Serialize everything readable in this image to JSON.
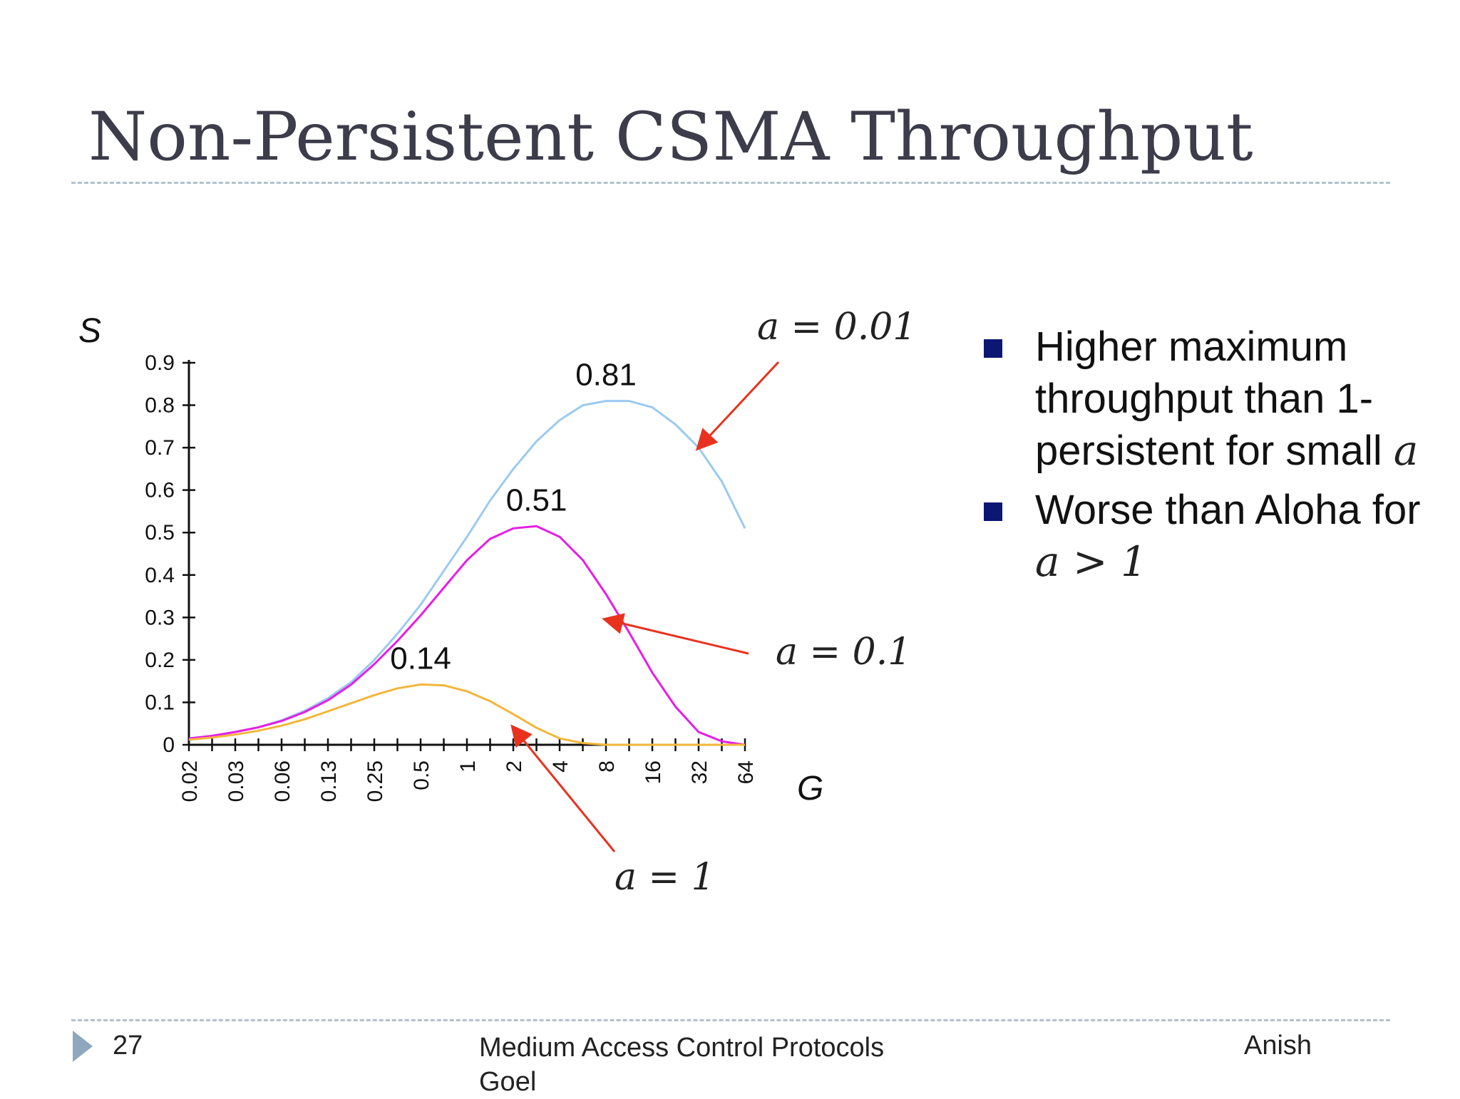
{
  "slide": {
    "title": "Non-Persistent CSMA Throughput",
    "page_number": "27",
    "footer_center_line1": "Medium Access Control Protocols",
    "footer_center_line2": "Goel",
    "footer_right": "Anish"
  },
  "bullets": [
    {
      "text": "Higher maximum throughput than 1-persistent for small",
      "var": "a"
    },
    {
      "text": "Worse than Aloha for",
      "var": "a > 1"
    }
  ],
  "chart_data": {
    "type": "line",
    "ylabel": "S",
    "xlabel": "G",
    "x_scale": "log",
    "x_ticks": [
      "0.02",
      "0.03",
      "0.06",
      "0.13",
      "0.25",
      "0.5",
      "1",
      "2",
      "4",
      "8",
      "16",
      "32",
      "64"
    ],
    "y_ticks": [
      "0",
      "0.1",
      "0.2",
      "0.3",
      "0.4",
      "0.5",
      "0.6",
      "0.7",
      "0.8",
      "0.9"
    ],
    "xlim": [
      0.0156,
      64
    ],
    "ylim": [
      0,
      0.9
    ],
    "series": [
      {
        "name": "a = 0.01",
        "color": "#9ccaf0",
        "x": [
          0.0156,
          0.022,
          0.031,
          0.044,
          0.0625,
          0.088,
          0.125,
          0.177,
          0.25,
          0.354,
          0.5,
          0.707,
          1,
          1.41,
          2,
          2.83,
          4,
          5.66,
          8,
          11.3,
          16,
          22.6,
          32,
          45.3,
          64
        ],
        "y": [
          0.015,
          0.021,
          0.03,
          0.041,
          0.058,
          0.08,
          0.11,
          0.148,
          0.2,
          0.262,
          0.33,
          0.41,
          0.49,
          0.575,
          0.65,
          0.715,
          0.765,
          0.8,
          0.81,
          0.81,
          0.795,
          0.755,
          0.7,
          0.62,
          0.51
        ]
      },
      {
        "name": "a = 0.1",
        "color": "#e61ee6",
        "x": [
          0.0156,
          0.022,
          0.031,
          0.044,
          0.0625,
          0.088,
          0.125,
          0.177,
          0.25,
          0.354,
          0.5,
          0.707,
          1,
          1.41,
          2,
          2.83,
          4,
          5.66,
          8,
          11.3,
          16,
          22.6,
          32,
          45.3,
          64
        ],
        "y": [
          0.015,
          0.021,
          0.03,
          0.041,
          0.056,
          0.077,
          0.105,
          0.142,
          0.19,
          0.245,
          0.305,
          0.37,
          0.435,
          0.485,
          0.51,
          0.515,
          0.49,
          0.435,
          0.355,
          0.265,
          0.17,
          0.09,
          0.03,
          0.008,
          0.0
        ]
      },
      {
        "name": "a = 1",
        "color": "#f3b63a",
        "x": [
          0.0156,
          0.022,
          0.031,
          0.044,
          0.0625,
          0.088,
          0.125,
          0.177,
          0.25,
          0.354,
          0.5,
          0.707,
          1,
          1.41,
          2,
          2.83,
          4,
          5.66,
          8,
          11.3,
          16,
          22.6,
          32,
          45.3,
          64
        ],
        "y": [
          0.012,
          0.017,
          0.024,
          0.033,
          0.045,
          0.06,
          0.079,
          0.098,
          0.117,
          0.133,
          0.142,
          0.14,
          0.126,
          0.103,
          0.072,
          0.04,
          0.015,
          0.004,
          0.0,
          0.0,
          0.0,
          0.0,
          0.0,
          0.0,
          0.0
        ]
      }
    ],
    "annotations": {
      "peak_labels": [
        {
          "text": "0.81",
          "x": 8,
          "y": 0.81
        },
        {
          "text": "0.51",
          "x": 2.83,
          "y": 0.515
        },
        {
          "text": "0.14",
          "x": 0.5,
          "y": 0.142
        }
      ],
      "arrows": [
        {
          "text_var": "a",
          "text_value": "0.01",
          "color": "#e8321e",
          "target_x": 32,
          "target_y": 0.7
        },
        {
          "text_var": "a",
          "text_value": "0.1",
          "color": "#e8321e",
          "target_x": 8,
          "target_y": 0.295
        },
        {
          "text_var": "a",
          "text_value": "1",
          "color": "#e8321e",
          "target_x": 2,
          "target_y": 0.04
        }
      ]
    }
  }
}
